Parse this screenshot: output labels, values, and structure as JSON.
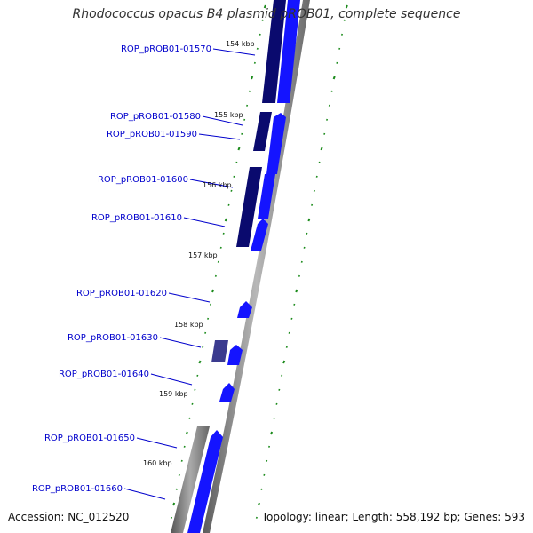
{
  "title": "Rhodococcus opacus B4 plasmid pROB01, complete sequence",
  "accession": "Accession: NC_012520",
  "summary": "Topology: linear; Length: 558,192 bp; Genes: 593",
  "colors": {
    "gene_label": "#0000cc",
    "forward_gene": "#1414ff",
    "reverse_gene": "#0a0a6e",
    "backbone": "#8c8c8c",
    "tick": "#1a8a1a"
  },
  "kbp_ticks": [
    "154 kbp",
    "155 kbp",
    "156 kbp",
    "157 kbp",
    "158 kbp",
    "159 kbp",
    "160 kbp"
  ],
  "genes": [
    {
      "label": "ROP_pROB01-01570"
    },
    {
      "label": "ROP_pROB01-01580"
    },
    {
      "label": "ROP_pROB01-01590"
    },
    {
      "label": "ROP_pROB01-01600"
    },
    {
      "label": "ROP_pROB01-01610"
    },
    {
      "label": "ROP_pROB01-01620"
    },
    {
      "label": "ROP_pROB01-01630"
    },
    {
      "label": "ROP_pROB01-01640"
    },
    {
      "label": "ROP_pROB01-01650"
    },
    {
      "label": "ROP_pROB01-01660"
    }
  ]
}
